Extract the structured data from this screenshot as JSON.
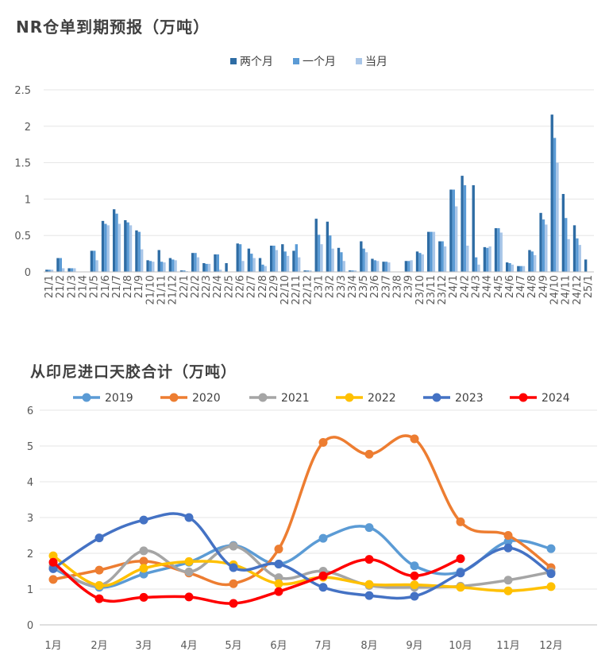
{
  "chart_data": [
    {
      "type": "bar",
      "title": "NR仓单到期预报（万吨）",
      "ylim": [
        0,
        2.5
      ],
      "yticks": [
        "0",
        "0.5",
        "1",
        "1.5",
        "2",
        "2.5"
      ],
      "legend_position": "top",
      "categories": [
        "21/1",
        "21/2",
        "21/3",
        "21/4",
        "21/5",
        "21/6",
        "21/7",
        "21/8",
        "21/9",
        "21/10",
        "21/11",
        "21/12",
        "22/1",
        "22/2",
        "22/3",
        "22/4",
        "22/5",
        "22/6",
        "22/7",
        "22/8",
        "22/9",
        "22/10",
        "22/11",
        "22/12",
        "23/1",
        "23/2",
        "23/3",
        "23/4",
        "23/5",
        "23/6",
        "23/7",
        "23/8",
        "23/9",
        "23/10",
        "23/11",
        "23/12",
        "24/1",
        "24/2",
        "24/3",
        "24/4",
        "24/5",
        "24/6",
        "24/7",
        "24/8",
        "24/9",
        "24/10",
        "24/11",
        "24/12",
        "25/1"
      ],
      "series": [
        {
          "name": "两个月",
          "color": "#2e6ca4",
          "values": [
            0.03,
            0.19,
            0.05,
            0,
            0.29,
            0.7,
            0.86,
            0.71,
            0.57,
            0.16,
            0.3,
            0.19,
            0.02,
            0.26,
            0.12,
            0.24,
            0.12,
            0.39,
            0.32,
            0.19,
            0.36,
            0.38,
            0.29,
            0.02,
            0.73,
            0.69,
            0.33,
            0.02,
            0.42,
            0.18,
            0.14,
            0,
            0.15,
            0.28,
            0.55,
            0.42,
            1.13,
            1.32,
            1.19,
            0.34,
            0.6,
            0.13,
            0.08,
            0.3,
            0.81,
            2.16,
            1.07,
            0.64,
            0.17
          ]
        },
        {
          "name": "一个月",
          "color": "#5b9bd5",
          "values": [
            0.03,
            0.19,
            0.05,
            0,
            0.29,
            0.66,
            0.8,
            0.68,
            0.55,
            0.15,
            0.14,
            0.17,
            0.02,
            0.26,
            0.11,
            0.24,
            0,
            0.38,
            0.25,
            0.1,
            0.36,
            0.28,
            0.38,
            0.02,
            0.51,
            0.5,
            0.27,
            0.02,
            0.32,
            0.16,
            0.14,
            0,
            0.15,
            0.26,
            0.55,
            0.42,
            1.13,
            1.19,
            0.2,
            0.33,
            0.6,
            0.12,
            0.08,
            0.28,
            0.72,
            1.84,
            0.74,
            0.46,
            0
          ]
        },
        {
          "name": "当月",
          "color": "#a9c6e8",
          "values": [
            0.03,
            0.05,
            0.05,
            0,
            0.16,
            0.64,
            0.66,
            0.64,
            0.31,
            0.14,
            0.13,
            0.16,
            0.01,
            0.2,
            0.11,
            0.03,
            0,
            0.15,
            0.19,
            0.08,
            0.3,
            0.22,
            0.2,
            0.02,
            0.38,
            0.32,
            0.15,
            0.02,
            0.27,
            0.15,
            0.13,
            0,
            0.16,
            0.24,
            0.55,
            0.35,
            0.9,
            0.36,
            0.1,
            0.35,
            0.54,
            0.1,
            0.08,
            0.23,
            0.65,
            1.5,
            0.45,
            0.37,
            0
          ]
        }
      ]
    },
    {
      "type": "line",
      "title": "从印尼进口天胶合计（万吨）",
      "ylim": [
        0,
        6
      ],
      "yticks": [
        "0",
        "1",
        "2",
        "3",
        "4",
        "5",
        "6"
      ],
      "legend_position": "top",
      "categories": [
        "1月",
        "2月",
        "3月",
        "4月",
        "5月",
        "6月",
        "7月",
        "8月",
        "9月",
        "10月",
        "11月",
        "12月"
      ],
      "series": [
        {
          "name": "2019",
          "color": "#5b9bd5",
          "values": [
            1.58,
            1.05,
            1.42,
            1.75,
            2.22,
            1.7,
            2.42,
            2.72,
            1.65,
            1.48,
            2.33,
            2.13
          ]
        },
        {
          "name": "2020",
          "color": "#ed7d31",
          "values": [
            1.27,
            1.53,
            1.78,
            1.45,
            1.15,
            2.12,
            5.1,
            4.77,
            5.2,
            2.88,
            2.5,
            1.6
          ]
        },
        {
          "name": "2021",
          "color": "#a5a5a5",
          "values": [
            1.65,
            1.1,
            2.07,
            1.48,
            2.2,
            1.32,
            1.5,
            1.1,
            1.05,
            1.08,
            1.25,
            1.48
          ]
        },
        {
          "name": "2022",
          "color": "#ffc000",
          "values": [
            1.93,
            1.1,
            1.58,
            1.77,
            1.68,
            1.15,
            1.33,
            1.13,
            1.12,
            1.05,
            0.95,
            1.07
          ]
        },
        {
          "name": "2023",
          "color": "#4472c4",
          "values": [
            1.57,
            2.43,
            2.93,
            3.0,
            1.6,
            1.7,
            1.05,
            0.82,
            0.8,
            1.45,
            2.15,
            1.43
          ]
        },
        {
          "name": "2024",
          "color": "#ff0000",
          "values": [
            1.75,
            0.73,
            0.77,
            0.78,
            0.6,
            0.93,
            1.37,
            1.83,
            1.37,
            1.85,
            null,
            null
          ]
        }
      ]
    }
  ]
}
